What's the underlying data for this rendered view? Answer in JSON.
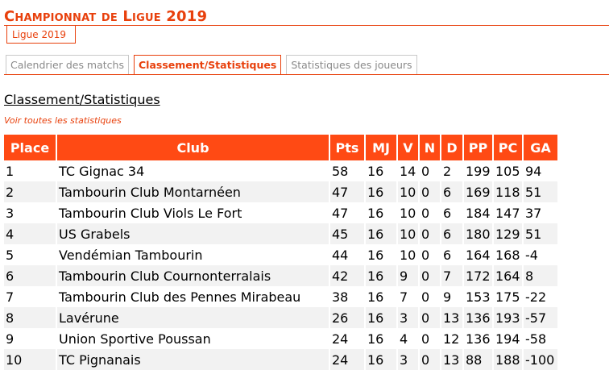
{
  "page": {
    "title": "Championnat de Ligue 2019"
  },
  "league_tab": {
    "label": "Ligue 2019"
  },
  "tabs": [
    {
      "label": "Calendrier des matchs"
    },
    {
      "label": "Classement/Statistiques"
    },
    {
      "label": "Statistiques des joueurs"
    }
  ],
  "section": {
    "heading": "Classement/Statistiques",
    "view_all_link": "Voir toutes les statistiques"
  },
  "colors": {
    "accent": "#e8400c",
    "header_bg": "#ff4a14",
    "row_alt": "#f2f2f2"
  },
  "table": {
    "headers": [
      "Place",
      "Club",
      "Pts",
      "MJ",
      "V",
      "N",
      "D",
      "PP",
      "PC",
      "GA"
    ],
    "rows": [
      [
        "1",
        "TC Gignac 34",
        "58",
        "16",
        "14",
        "0",
        "2",
        "199",
        "105",
        "94"
      ],
      [
        "2",
        "Tambourin Club Montarnéen",
        "47",
        "16",
        "10",
        "0",
        "6",
        "169",
        "118",
        "51"
      ],
      [
        "3",
        "Tambourin Club Viols Le Fort",
        "47",
        "16",
        "10",
        "0",
        "6",
        "184",
        "147",
        "37"
      ],
      [
        "4",
        "US Grabels",
        "45",
        "16",
        "10",
        "0",
        "6",
        "180",
        "129",
        "51"
      ],
      [
        "5",
        "Vendémian Tambourin",
        "44",
        "16",
        "10",
        "0",
        "6",
        "164",
        "168",
        "-4"
      ],
      [
        "6",
        "Tambourin Club Cournonterralais",
        "42",
        "16",
        "9",
        "0",
        "7",
        "172",
        "164",
        "8"
      ],
      [
        "7",
        "Tambourin Club des Pennes Mirabeau",
        "38",
        "16",
        "7",
        "0",
        "9",
        "153",
        "175",
        "-22"
      ],
      [
        "8",
        "Lavérune",
        "26",
        "16",
        "3",
        "0",
        "13",
        "136",
        "193",
        "-57"
      ],
      [
        "9",
        "Union Sportive Poussan",
        "24",
        "16",
        "4",
        "0",
        "12",
        "136",
        "194",
        "-58"
      ],
      [
        "10",
        "TC Pignanais",
        "24",
        "16",
        "3",
        "0",
        "13",
        "88",
        "188",
        "-100"
      ]
    ]
  }
}
